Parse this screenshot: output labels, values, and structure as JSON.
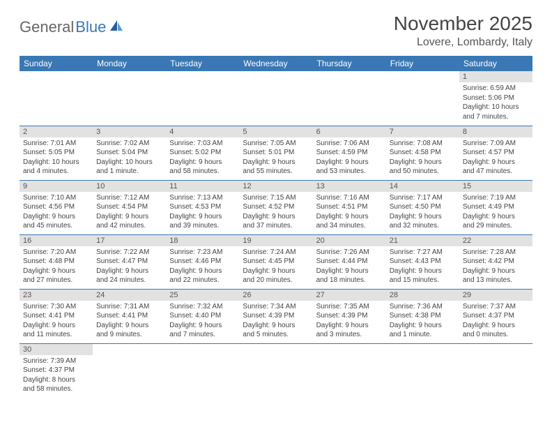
{
  "logo": {
    "part1": "General",
    "part2": "Blue"
  },
  "title": "November 2025",
  "location": "Lovere, Lombardy, Italy",
  "colors": {
    "header_bg": "#3a78b5",
    "daynum_bg": "#e2e2e2",
    "border": "#3a78b5"
  },
  "fonts": {
    "title_pt": 28,
    "location_pt": 16,
    "th_pt": 12,
    "daynum_pt": 11,
    "body_pt": 10
  },
  "weekdays": [
    "Sunday",
    "Monday",
    "Tuesday",
    "Wednesday",
    "Thursday",
    "Friday",
    "Saturday"
  ],
  "weeks": [
    [
      null,
      null,
      null,
      null,
      null,
      null,
      {
        "n": "1",
        "sunrise": "Sunrise: 6:59 AM",
        "sunset": "Sunset: 5:06 PM",
        "daylight1": "Daylight: 10 hours",
        "daylight2": "and 7 minutes."
      }
    ],
    [
      {
        "n": "2",
        "sunrise": "Sunrise: 7:01 AM",
        "sunset": "Sunset: 5:05 PM",
        "daylight1": "Daylight: 10 hours",
        "daylight2": "and 4 minutes."
      },
      {
        "n": "3",
        "sunrise": "Sunrise: 7:02 AM",
        "sunset": "Sunset: 5:04 PM",
        "daylight1": "Daylight: 10 hours",
        "daylight2": "and 1 minute."
      },
      {
        "n": "4",
        "sunrise": "Sunrise: 7:03 AM",
        "sunset": "Sunset: 5:02 PM",
        "daylight1": "Daylight: 9 hours",
        "daylight2": "and 58 minutes."
      },
      {
        "n": "5",
        "sunrise": "Sunrise: 7:05 AM",
        "sunset": "Sunset: 5:01 PM",
        "daylight1": "Daylight: 9 hours",
        "daylight2": "and 55 minutes."
      },
      {
        "n": "6",
        "sunrise": "Sunrise: 7:06 AM",
        "sunset": "Sunset: 4:59 PM",
        "daylight1": "Daylight: 9 hours",
        "daylight2": "and 53 minutes."
      },
      {
        "n": "7",
        "sunrise": "Sunrise: 7:08 AM",
        "sunset": "Sunset: 4:58 PM",
        "daylight1": "Daylight: 9 hours",
        "daylight2": "and 50 minutes."
      },
      {
        "n": "8",
        "sunrise": "Sunrise: 7:09 AM",
        "sunset": "Sunset: 4:57 PM",
        "daylight1": "Daylight: 9 hours",
        "daylight2": "and 47 minutes."
      }
    ],
    [
      {
        "n": "9",
        "sunrise": "Sunrise: 7:10 AM",
        "sunset": "Sunset: 4:56 PM",
        "daylight1": "Daylight: 9 hours",
        "daylight2": "and 45 minutes."
      },
      {
        "n": "10",
        "sunrise": "Sunrise: 7:12 AM",
        "sunset": "Sunset: 4:54 PM",
        "daylight1": "Daylight: 9 hours",
        "daylight2": "and 42 minutes."
      },
      {
        "n": "11",
        "sunrise": "Sunrise: 7:13 AM",
        "sunset": "Sunset: 4:53 PM",
        "daylight1": "Daylight: 9 hours",
        "daylight2": "and 39 minutes."
      },
      {
        "n": "12",
        "sunrise": "Sunrise: 7:15 AM",
        "sunset": "Sunset: 4:52 PM",
        "daylight1": "Daylight: 9 hours",
        "daylight2": "and 37 minutes."
      },
      {
        "n": "13",
        "sunrise": "Sunrise: 7:16 AM",
        "sunset": "Sunset: 4:51 PM",
        "daylight1": "Daylight: 9 hours",
        "daylight2": "and 34 minutes."
      },
      {
        "n": "14",
        "sunrise": "Sunrise: 7:17 AM",
        "sunset": "Sunset: 4:50 PM",
        "daylight1": "Daylight: 9 hours",
        "daylight2": "and 32 minutes."
      },
      {
        "n": "15",
        "sunrise": "Sunrise: 7:19 AM",
        "sunset": "Sunset: 4:49 PM",
        "daylight1": "Daylight: 9 hours",
        "daylight2": "and 29 minutes."
      }
    ],
    [
      {
        "n": "16",
        "sunrise": "Sunrise: 7:20 AM",
        "sunset": "Sunset: 4:48 PM",
        "daylight1": "Daylight: 9 hours",
        "daylight2": "and 27 minutes."
      },
      {
        "n": "17",
        "sunrise": "Sunrise: 7:22 AM",
        "sunset": "Sunset: 4:47 PM",
        "daylight1": "Daylight: 9 hours",
        "daylight2": "and 24 minutes."
      },
      {
        "n": "18",
        "sunrise": "Sunrise: 7:23 AM",
        "sunset": "Sunset: 4:46 PM",
        "daylight1": "Daylight: 9 hours",
        "daylight2": "and 22 minutes."
      },
      {
        "n": "19",
        "sunrise": "Sunrise: 7:24 AM",
        "sunset": "Sunset: 4:45 PM",
        "daylight1": "Daylight: 9 hours",
        "daylight2": "and 20 minutes."
      },
      {
        "n": "20",
        "sunrise": "Sunrise: 7:26 AM",
        "sunset": "Sunset: 4:44 PM",
        "daylight1": "Daylight: 9 hours",
        "daylight2": "and 18 minutes."
      },
      {
        "n": "21",
        "sunrise": "Sunrise: 7:27 AM",
        "sunset": "Sunset: 4:43 PM",
        "daylight1": "Daylight: 9 hours",
        "daylight2": "and 15 minutes."
      },
      {
        "n": "22",
        "sunrise": "Sunrise: 7:28 AM",
        "sunset": "Sunset: 4:42 PM",
        "daylight1": "Daylight: 9 hours",
        "daylight2": "and 13 minutes."
      }
    ],
    [
      {
        "n": "23",
        "sunrise": "Sunrise: 7:30 AM",
        "sunset": "Sunset: 4:41 PM",
        "daylight1": "Daylight: 9 hours",
        "daylight2": "and 11 minutes."
      },
      {
        "n": "24",
        "sunrise": "Sunrise: 7:31 AM",
        "sunset": "Sunset: 4:41 PM",
        "daylight1": "Daylight: 9 hours",
        "daylight2": "and 9 minutes."
      },
      {
        "n": "25",
        "sunrise": "Sunrise: 7:32 AM",
        "sunset": "Sunset: 4:40 PM",
        "daylight1": "Daylight: 9 hours",
        "daylight2": "and 7 minutes."
      },
      {
        "n": "26",
        "sunrise": "Sunrise: 7:34 AM",
        "sunset": "Sunset: 4:39 PM",
        "daylight1": "Daylight: 9 hours",
        "daylight2": "and 5 minutes."
      },
      {
        "n": "27",
        "sunrise": "Sunrise: 7:35 AM",
        "sunset": "Sunset: 4:39 PM",
        "daylight1": "Daylight: 9 hours",
        "daylight2": "and 3 minutes."
      },
      {
        "n": "28",
        "sunrise": "Sunrise: 7:36 AM",
        "sunset": "Sunset: 4:38 PM",
        "daylight1": "Daylight: 9 hours",
        "daylight2": "and 1 minute."
      },
      {
        "n": "29",
        "sunrise": "Sunrise: 7:37 AM",
        "sunset": "Sunset: 4:37 PM",
        "daylight1": "Daylight: 9 hours",
        "daylight2": "and 0 minutes."
      }
    ],
    [
      {
        "n": "30",
        "sunrise": "Sunrise: 7:39 AM",
        "sunset": "Sunset: 4:37 PM",
        "daylight1": "Daylight: 8 hours",
        "daylight2": "and 58 minutes."
      },
      null,
      null,
      null,
      null,
      null,
      null
    ]
  ]
}
